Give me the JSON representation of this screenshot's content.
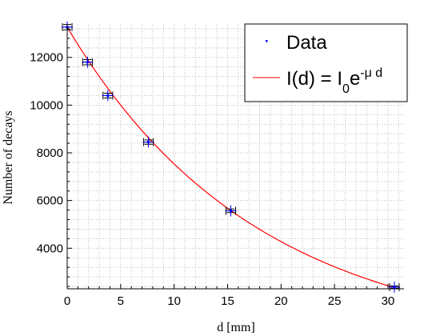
{
  "chart_data": {
    "type": "scatter",
    "xlabel": "d [mm]",
    "ylabel": "Number of decays",
    "xlim": [
      0,
      31.5
    ],
    "ylim": [
      2300,
      13400
    ],
    "xticks": [
      0,
      5,
      10,
      15,
      20,
      25,
      30
    ],
    "yticks": [
      4000,
      6000,
      8000,
      10000,
      12000
    ],
    "grid": true,
    "legend_position": "top-right",
    "series": [
      {
        "name": "Data",
        "kind": "points-with-errorbars",
        "color": "#0000ff",
        "errorbar_color": "#000000",
        "x": [
          0,
          1.9,
          3.8,
          7.6,
          15.3,
          30.6
        ],
        "y": [
          13270,
          11800,
          10400,
          8450,
          5570,
          2370
        ],
        "x_err": [
          0.45,
          0.45,
          0.45,
          0.45,
          0.45,
          0.45
        ],
        "y_err": [
          110,
          110,
          100,
          90,
          75,
          50
        ]
      },
      {
        "name_parts": [
          "I(d) = I",
          "0",
          "e",
          "-μ d"
        ],
        "kind": "curve",
        "color": "#ff0000",
        "model": "I0*exp(-mu*d)",
        "I0": 13270,
        "mu": 0.0566,
        "x_range": [
          0,
          30.6
        ]
      }
    ]
  }
}
